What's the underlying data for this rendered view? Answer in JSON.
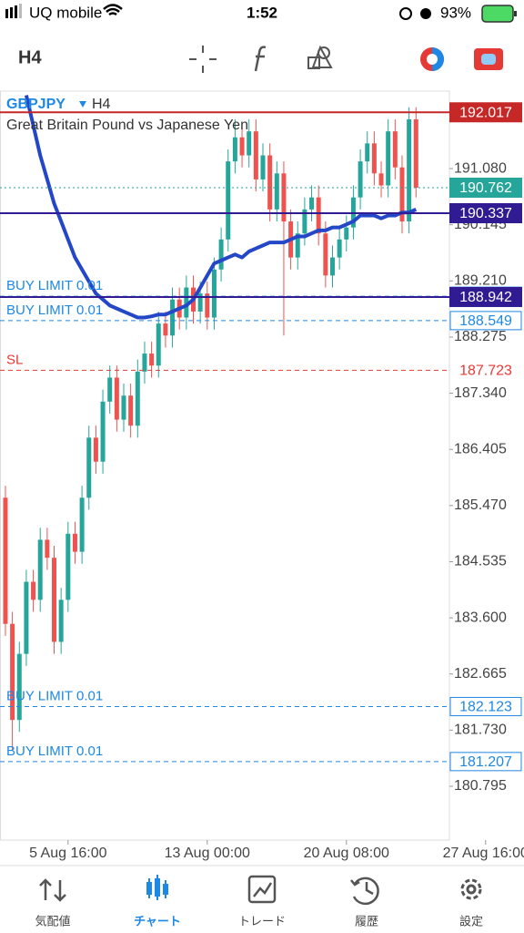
{
  "status_bar": {
    "carrier": "UQ mobile",
    "time": "1:52",
    "battery": "93%"
  },
  "toolbar": {
    "timeframe": "H4"
  },
  "chart_data": {
    "type": "candlestick",
    "symbol": "GBPJPY",
    "period": "H4",
    "description": "Great Britain Pound vs Japanese Yen",
    "up_color": "#26a69a",
    "down_color": "#ef5350",
    "ylim": [
      179.9,
      192.37
    ],
    "yticks": [
      {
        "value": 191.08,
        "label": "191.080"
      },
      190.145,
      {
        "value": 189.21,
        "label": "189.210"
      },
      188.275,
      {
        "value": 187.34,
        "label": "187.340"
      },
      186.405,
      {
        "value": 185.47,
        "label": "185.470"
      },
      184.535,
      {
        "value": 183.6,
        "label": "183.600"
      },
      182.665,
      {
        "value": 181.73,
        "label": "181.730"
      },
      180.795
    ],
    "xlim": [
      -0.78,
      63.8
    ],
    "xticks": [
      {
        "value": 9,
        "label": "5 Aug 16:00"
      },
      {
        "value": 29,
        "label": "13 Aug 00:00"
      },
      {
        "value": 49,
        "label": "20 Aug 08:00"
      },
      {
        "value": 69,
        "label": "27 Aug 16:00"
      }
    ],
    "open": [
      185.6,
      183.5,
      181.9,
      183.0,
      184.2,
      183.9,
      184.9,
      184.6,
      183.2,
      183.9,
      185.0,
      184.7,
      185.6,
      186.6,
      186.2,
      187.2,
      187.6,
      186.9,
      187.3,
      186.8,
      187.7,
      188.0,
      187.8,
      188.5,
      188.3,
      188.9,
      188.6,
      189.1,
      188.7,
      189.0,
      188.6,
      189.4,
      189.9,
      191.2,
      191.6,
      191.3,
      191.7,
      190.9,
      191.3,
      190.4,
      191.0,
      190.2,
      189.6,
      190.0,
      190.4,
      190.6,
      190.0,
      189.3,
      189.6,
      189.9,
      190.1,
      190.6,
      191.2,
      191.5,
      191.0,
      190.8,
      191.7,
      191.1,
      190.2,
      191.9
    ],
    "high": [
      185.8,
      183.7,
      183.2,
      184.4,
      184.4,
      185.1,
      185.1,
      184.8,
      184.1,
      185.2,
      185.2,
      185.8,
      186.8,
      186.8,
      187.4,
      187.8,
      187.8,
      187.5,
      187.5,
      187.9,
      188.2,
      188.2,
      188.7,
      188.7,
      189.1,
      189.1,
      189.3,
      189.3,
      189.2,
      189.2,
      189.6,
      190.1,
      191.4,
      191.9,
      191.8,
      191.9,
      191.9,
      191.5,
      191.5,
      191.2,
      191.2,
      190.4,
      190.2,
      190.6,
      190.8,
      190.8,
      190.2,
      189.8,
      190.1,
      190.3,
      190.8,
      191.4,
      191.7,
      191.7,
      191.2,
      191.9,
      191.9,
      191.3,
      192.1,
      192.1
    ],
    "low": [
      183.3,
      181.4,
      181.7,
      182.8,
      183.7,
      183.7,
      184.4,
      183.0,
      183.0,
      183.7,
      184.5,
      184.5,
      185.4,
      186.0,
      186.0,
      187.0,
      186.7,
      186.7,
      186.6,
      186.6,
      187.5,
      187.6,
      187.6,
      188.1,
      188.1,
      188.4,
      188.4,
      188.5,
      188.5,
      188.4,
      188.4,
      189.2,
      189.7,
      191.0,
      191.1,
      191.1,
      190.7,
      190.7,
      190.2,
      190.2,
      188.3,
      189.4,
      189.4,
      189.8,
      190.2,
      189.8,
      189.1,
      189.1,
      189.4,
      189.7,
      189.9,
      190.4,
      191.0,
      190.8,
      190.6,
      190.6,
      190.9,
      190.0,
      190.0,
      190.6
    ],
    "close": [
      183.5,
      181.9,
      183.0,
      184.2,
      183.9,
      184.9,
      184.6,
      183.2,
      183.9,
      185.0,
      184.7,
      185.6,
      186.6,
      186.2,
      187.2,
      187.6,
      186.9,
      187.3,
      186.8,
      187.7,
      188.0,
      187.8,
      188.5,
      188.3,
      188.9,
      188.6,
      189.1,
      188.7,
      189.0,
      188.6,
      189.4,
      189.9,
      191.2,
      191.6,
      191.3,
      191.7,
      190.9,
      191.3,
      190.4,
      191.0,
      190.2,
      189.6,
      190.0,
      190.4,
      190.6,
      190.0,
      189.3,
      189.6,
      189.9,
      190.1,
      190.6,
      191.2,
      191.5,
      191.0,
      190.8,
      191.7,
      191.1,
      190.2,
      191.9,
      190.762
    ],
    "moving_average": {
      "color": "#2447c8",
      "values": [
        null,
        null,
        null,
        192.3,
        191.8,
        191.3,
        190.9,
        190.5,
        190.2,
        189.9,
        189.6,
        189.4,
        189.2,
        189.0,
        188.9,
        188.8,
        188.75,
        188.7,
        188.65,
        188.6,
        188.6,
        188.62,
        188.65,
        188.65,
        188.7,
        188.75,
        188.8,
        188.9,
        189.1,
        189.3,
        189.5,
        189.55,
        189.6,
        189.65,
        189.6,
        189.7,
        189.75,
        189.8,
        189.85,
        189.85,
        189.85,
        189.9,
        189.95,
        189.95,
        190.0,
        190.05,
        190.05,
        190.1,
        190.1,
        190.15,
        190.2,
        190.3,
        190.3,
        190.3,
        190.25,
        190.3,
        190.3,
        190.35,
        190.35,
        190.4
      ]
    },
    "levels": [
      {
        "value": 192.017,
        "color": "#c62828",
        "line": "solid",
        "box": "filled"
      },
      {
        "value": 190.762,
        "color": "#26a69a",
        "line": "dotted",
        "box": "filled"
      },
      {
        "value": 190.337,
        "color": "#311b92",
        "line": "solid",
        "box": "filled"
      },
      {
        "value": 188.955,
        "color": "#1e88e5",
        "line": "dashed",
        "box": "outline",
        "tag": "BUY LIMIT 0.01"
      },
      {
        "value": 188.942,
        "color": "#311b92",
        "line": "solid",
        "box": "filled"
      },
      {
        "value": 188.549,
        "color": "#1e88e5",
        "line": "dashed",
        "box": "outline",
        "tag": "BUY LIMIT 0.01"
      },
      {
        "value": 187.723,
        "color": "#e53935",
        "line": "dashed",
        "box": "none",
        "tag": "SL"
      },
      {
        "value": 182.123,
        "color": "#1e88e5",
        "line": "dashed",
        "box": "outline",
        "tag": "BUY LIMIT 0.01"
      },
      {
        "value": 181.207,
        "color": "#1e88e5",
        "line": "dashed",
        "box": "outline",
        "tag": "BUY LIMIT 0.01"
      }
    ]
  },
  "tab_bar": {
    "active": 1,
    "tabs": [
      "気配値",
      "チャート",
      "トレード",
      "履歴",
      "設定"
    ]
  }
}
